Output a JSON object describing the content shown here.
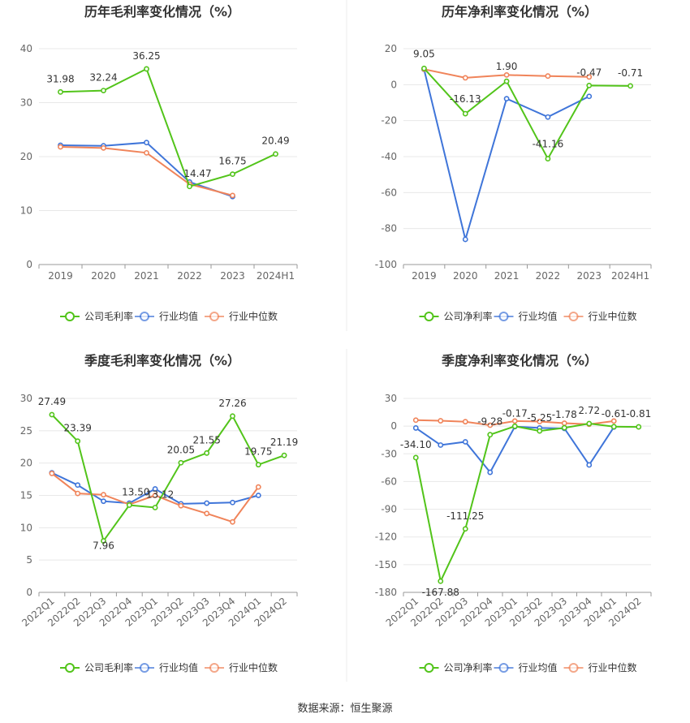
{
  "colors": {
    "company": "#52c41a",
    "avg": "#3f75d9",
    "median": "#f0845a",
    "grid": "#e8e8e8",
    "axis": "#999999"
  },
  "source": "数据来源：恒生聚源",
  "chart_data": [
    {
      "type": "line",
      "title": "历年毛利率变化情况（%）",
      "categories": [
        "2019",
        "2020",
        "2021",
        "2022",
        "2023",
        "2024H1"
      ],
      "ylim": [
        0,
        40
      ],
      "yticks": [
        0,
        10,
        20,
        30,
        40
      ],
      "legend": "bottom",
      "series": [
        {
          "name": "公司毛利率",
          "key": "company",
          "values": [
            31.98,
            32.24,
            36.25,
            14.47,
            16.75,
            20.49
          ],
          "labels": [
            "31.98",
            "32.24",
            "36.25",
            "14.47",
            "16.75",
            "20.49"
          ]
        },
        {
          "name": "行业均值",
          "key": "avg",
          "values": [
            22.1,
            22.0,
            22.6,
            15.3,
            12.6,
            null
          ]
        },
        {
          "name": "行业中位数",
          "key": "median",
          "values": [
            21.8,
            21.6,
            20.7,
            14.9,
            12.8,
            null
          ]
        }
      ]
    },
    {
      "type": "line",
      "title": "历年净利率变化情况（%）",
      "categories": [
        "2019",
        "2020",
        "2021",
        "2022",
        "2023",
        "2024H1"
      ],
      "ylim": [
        -100,
        20
      ],
      "yticks": [
        -100,
        -80,
        -60,
        -40,
        -20,
        0,
        20
      ],
      "legend": "bottom",
      "series": [
        {
          "name": "公司净利率",
          "key": "company",
          "values": [
            9.05,
            -16.13,
            1.9,
            -41.16,
            -0.47,
            -0.71
          ],
          "labels": [
            "9.05",
            "-16.13",
            "1.90",
            "-41.16",
            "-0.47",
            "-0.71"
          ]
        },
        {
          "name": "行业均值",
          "key": "avg",
          "values": [
            8.5,
            -86.0,
            -7.8,
            -18.0,
            -6.5,
            null
          ]
        },
        {
          "name": "行业中位数",
          "key": "median",
          "values": [
            8.6,
            3.8,
            5.4,
            4.8,
            4.3,
            null
          ]
        }
      ]
    },
    {
      "type": "line",
      "title": "季度毛利率变化情况（%）",
      "categories": [
        "2022Q1",
        "2022Q2",
        "2022Q3",
        "2022Q4",
        "2023Q1",
        "2023Q2",
        "2023Q3",
        "2023Q4",
        "2024Q1",
        "2024Q2"
      ],
      "ylim": [
        0,
        30
      ],
      "yticks": [
        0,
        5,
        10,
        15,
        20,
        25,
        30
      ],
      "legend": "bottom",
      "series": [
        {
          "name": "公司毛利率",
          "key": "company",
          "values": [
            27.49,
            23.39,
            7.96,
            13.5,
            13.12,
            20.05,
            21.55,
            27.26,
            19.75,
            21.19
          ],
          "labels": [
            "27.49",
            "23.39",
            "7.96",
            "13.50",
            "13.12",
            "20.05",
            "21.55",
            "27.26",
            "19.75",
            "21.19"
          ]
        },
        {
          "name": "行业均值",
          "key": "avg",
          "values": [
            18.5,
            16.6,
            14.1,
            13.8,
            16.0,
            13.7,
            13.8,
            13.9,
            15.0,
            null
          ]
        },
        {
          "name": "行业中位数",
          "key": "median",
          "values": [
            18.4,
            15.3,
            15.1,
            13.6,
            15.0,
            13.4,
            12.2,
            10.9,
            16.3,
            null
          ]
        }
      ]
    },
    {
      "type": "line",
      "title": "季度净利率变化情况（%）",
      "categories": [
        "2022Q1",
        "2022Q2",
        "2022Q3",
        "2022Q4",
        "2023Q1",
        "2023Q2",
        "2023Q3",
        "2023Q4",
        "2024Q1",
        "2024Q2"
      ],
      "ylim": [
        -180,
        30
      ],
      "yticks": [
        -180,
        -150,
        -120,
        -90,
        -60,
        -30,
        0,
        30
      ],
      "legend": "bottom",
      "series": [
        {
          "name": "公司净利率",
          "key": "company",
          "values": [
            -34.1,
            -167.88,
            -111.25,
            -9.28,
            -0.17,
            -5.25,
            -1.78,
            2.72,
            -0.61,
            -0.81
          ],
          "labels": [
            "-34.10",
            "-167.88",
            "-111.25",
            "-9.28",
            "-0.17",
            "-5.25",
            "-1.78",
            "2.72",
            "-0.61",
            "-0.81"
          ]
        },
        {
          "name": "行业均值",
          "key": "avg",
          "values": [
            -2.0,
            -20.5,
            -17.0,
            -50.0,
            -0.5,
            -2.0,
            -2.5,
            -42.0,
            -1.0,
            null
          ]
        },
        {
          "name": "行业中位数",
          "key": "median",
          "values": [
            6.5,
            5.8,
            4.8,
            1.0,
            5.5,
            5.0,
            3.2,
            2.0,
            5.5,
            null
          ]
        }
      ]
    }
  ]
}
